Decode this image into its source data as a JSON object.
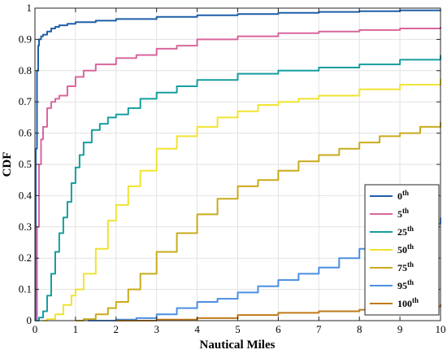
{
  "chart_data": {
    "type": "line",
    "xlabel": "Nautical Miles",
    "ylabel": "CDF",
    "xlim": [
      0,
      10
    ],
    "ylim": [
      0,
      1
    ],
    "xticks": [
      "0",
      "1",
      "2",
      "3",
      "4",
      "5",
      "6",
      "7",
      "8",
      "9",
      "10"
    ],
    "yticks": [
      "0",
      "0.1",
      "0.2",
      "0.3",
      "0.4",
      "0.5",
      "0.6",
      "0.7",
      "0.8",
      "0.9",
      "1"
    ],
    "grid": true,
    "legend_position": "lower-right",
    "series": [
      {
        "name": "0",
        "name_sup": "th",
        "color": "#1f5fa8",
        "x": [
          0,
          0.02,
          0.05,
          0.08,
          0.1,
          0.15,
          0.2,
          0.3,
          0.4,
          0.5,
          0.6,
          0.8,
          1.0,
          1.5,
          2.0,
          3.0,
          4.0,
          5.0,
          6.0,
          7.0,
          8.0,
          9.0,
          10.0
        ],
        "y": [
          0,
          0.55,
          0.8,
          0.88,
          0.9,
          0.91,
          0.915,
          0.925,
          0.935,
          0.94,
          0.945,
          0.95,
          0.955,
          0.96,
          0.965,
          0.972,
          0.977,
          0.981,
          0.985,
          0.988,
          0.99,
          0.993,
          0.995
        ]
      },
      {
        "name": "5",
        "name_sup": "th",
        "color": "#d9669d",
        "x": [
          0,
          0.05,
          0.1,
          0.15,
          0.2,
          0.3,
          0.4,
          0.5,
          0.6,
          0.8,
          1.0,
          1.2,
          1.5,
          2.0,
          2.5,
          3.0,
          3.5,
          4.0,
          5.0,
          6.0,
          7.0,
          8.0,
          9.0,
          10.0
        ],
        "y": [
          0,
          0.3,
          0.5,
          0.58,
          0.62,
          0.68,
          0.7,
          0.71,
          0.72,
          0.75,
          0.78,
          0.8,
          0.82,
          0.84,
          0.85,
          0.87,
          0.88,
          0.9,
          0.91,
          0.92,
          0.925,
          0.93,
          0.935,
          0.94
        ]
      },
      {
        "name": "25",
        "name_sup": "th",
        "color": "#179e9e",
        "x": [
          0,
          0.1,
          0.2,
          0.3,
          0.4,
          0.5,
          0.6,
          0.7,
          0.8,
          0.9,
          1.0,
          1.1,
          1.2,
          1.4,
          1.6,
          1.8,
          2.0,
          2.3,
          2.6,
          3.0,
          3.5,
          4.0,
          5.0,
          6.0,
          7.0,
          8.0,
          9.0,
          10.0
        ],
        "y": [
          0,
          0.01,
          0.03,
          0.08,
          0.15,
          0.22,
          0.28,
          0.33,
          0.38,
          0.44,
          0.49,
          0.53,
          0.57,
          0.61,
          0.63,
          0.65,
          0.66,
          0.68,
          0.71,
          0.73,
          0.75,
          0.77,
          0.79,
          0.8,
          0.81,
          0.82,
          0.835,
          0.85
        ]
      },
      {
        "name": "50",
        "name_sup": "th",
        "color": "#f0e331",
        "x": [
          0.2,
          0.3,
          0.5,
          0.7,
          0.9,
          1.0,
          1.2,
          1.5,
          1.8,
          2.0,
          2.3,
          2.6,
          3.0,
          3.5,
          4.0,
          4.5,
          5.0,
          5.5,
          6.0,
          6.5,
          7.0,
          8.0,
          9.0,
          10.0
        ],
        "y": [
          0,
          0.005,
          0.02,
          0.05,
          0.08,
          0.1,
          0.15,
          0.23,
          0.32,
          0.37,
          0.43,
          0.48,
          0.55,
          0.59,
          0.62,
          0.65,
          0.67,
          0.69,
          0.7,
          0.71,
          0.72,
          0.74,
          0.755,
          0.775
        ]
      },
      {
        "name": "75",
        "name_sup": "th",
        "color": "#c9ab1c",
        "x": [
          1.0,
          1.2,
          1.5,
          1.8,
          2.0,
          2.3,
          2.6,
          3.0,
          3.5,
          4.0,
          4.5,
          5.0,
          5.5,
          6.0,
          6.5,
          7.0,
          7.5,
          8.0,
          8.5,
          9.0,
          9.5,
          10.0
        ],
        "y": [
          0,
          0.005,
          0.02,
          0.04,
          0.06,
          0.1,
          0.15,
          0.22,
          0.28,
          0.34,
          0.39,
          0.43,
          0.45,
          0.48,
          0.51,
          0.53,
          0.55,
          0.57,
          0.59,
          0.6,
          0.62,
          0.635
        ]
      },
      {
        "name": "95",
        "name_sup": "th",
        "color": "#4b8fe3",
        "x": [
          1.3,
          2.0,
          2.5,
          3.0,
          3.5,
          4.0,
          4.5,
          5.0,
          5.5,
          6.0,
          6.5,
          7.0,
          7.5,
          8.0,
          8.5,
          9.0,
          9.5,
          10.0
        ],
        "y": [
          0,
          0.003,
          0.008,
          0.02,
          0.04,
          0.06,
          0.07,
          0.09,
          0.11,
          0.13,
          0.15,
          0.17,
          0.2,
          0.23,
          0.25,
          0.27,
          0.31,
          0.33
        ]
      },
      {
        "name": "100",
        "name_sup": "th",
        "color": "#c07a1a",
        "x": [
          2.0,
          3.0,
          4.0,
          5.0,
          6.0,
          7.0,
          8.0,
          9.0,
          9.5,
          10.0
        ],
        "y": [
          0,
          0.003,
          0.008,
          0.018,
          0.025,
          0.03,
          0.035,
          0.04,
          0.045,
          0.052
        ]
      }
    ]
  }
}
